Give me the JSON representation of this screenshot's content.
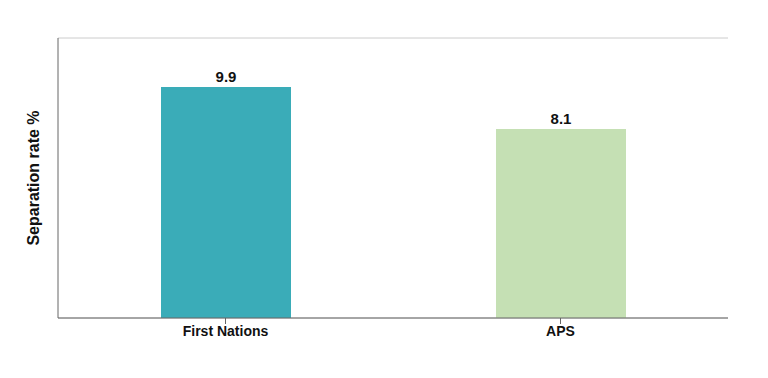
{
  "chart_data": {
    "type": "bar",
    "ylabel": "Separation rate %",
    "categories": [
      "First Nations",
      "APS"
    ],
    "values": [
      9.9,
      8.1
    ],
    "colors": [
      "#3aacb8",
      "#c5e0b4"
    ],
    "ylim": [
      0,
      12
    ],
    "yticks": [
      0,
      2,
      4,
      6,
      8,
      10,
      12
    ],
    "grid": true,
    "data_labels": true,
    "tick_labels": "x"
  }
}
